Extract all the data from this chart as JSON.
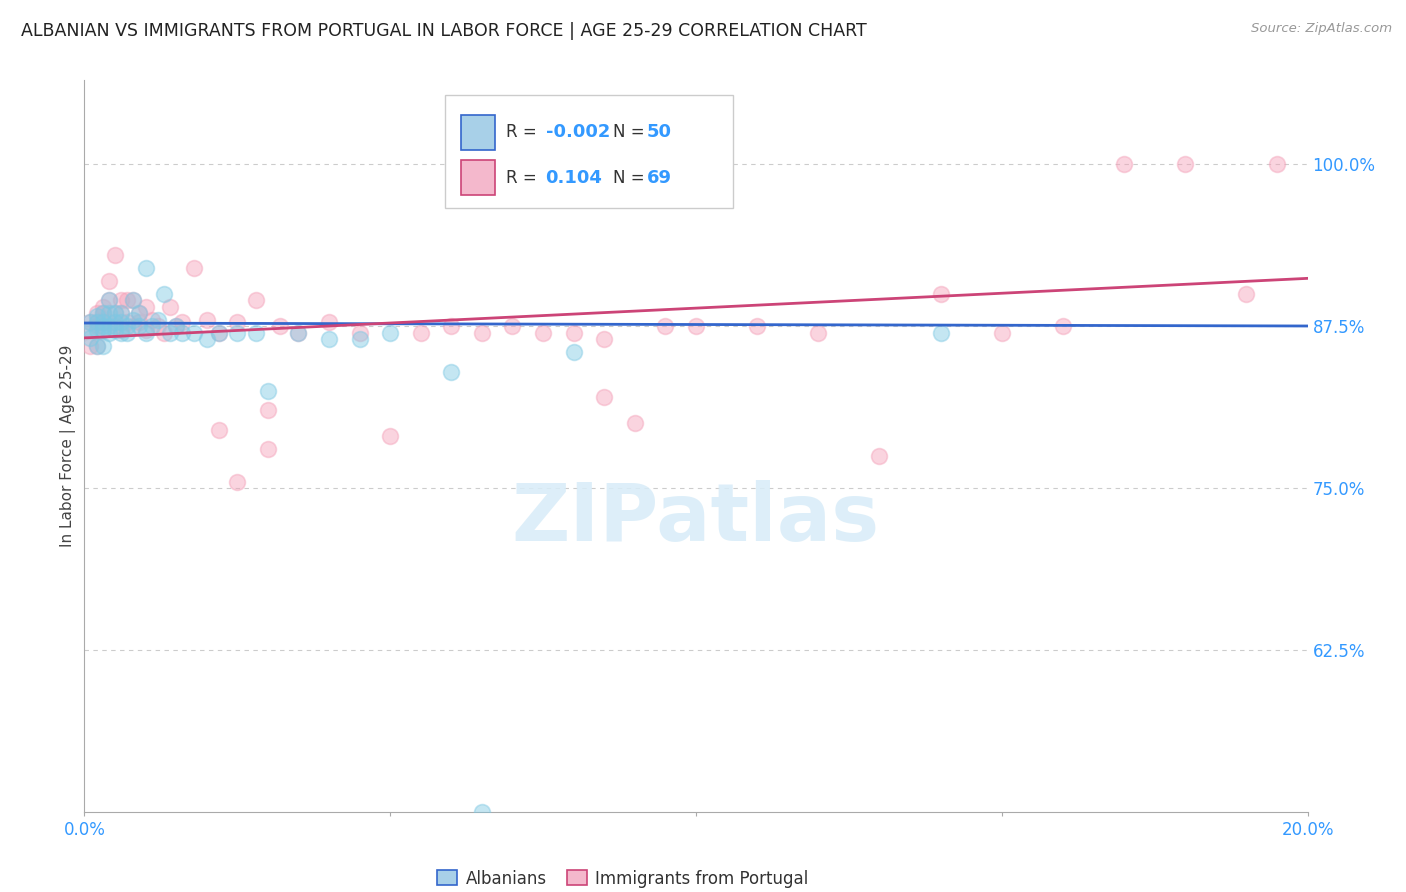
{
  "title": "ALBANIAN VS IMMIGRANTS FROM PORTUGAL IN LABOR FORCE | AGE 25-29 CORRELATION CHART",
  "source": "Source: ZipAtlas.com",
  "ylabel": "In Labor Force | Age 25-29",
  "yticks": [
    0.625,
    0.75,
    0.875,
    1.0
  ],
  "ytick_labels": [
    "62.5%",
    "75.0%",
    "87.5%",
    "100.0%"
  ],
  "xlim": [
    0.0,
    0.2
  ],
  "ylim": [
    0.5,
    1.065
  ],
  "blue_scatter_x": [
    0.001,
    0.001,
    0.001,
    0.002,
    0.002,
    0.002,
    0.002,
    0.003,
    0.003,
    0.003,
    0.003,
    0.003,
    0.004,
    0.004,
    0.004,
    0.004,
    0.005,
    0.005,
    0.005,
    0.006,
    0.006,
    0.006,
    0.007,
    0.007,
    0.008,
    0.008,
    0.009,
    0.009,
    0.01,
    0.01,
    0.011,
    0.012,
    0.013,
    0.014,
    0.015,
    0.016,
    0.018,
    0.02,
    0.022,
    0.025,
    0.028,
    0.03,
    0.035,
    0.04,
    0.045,
    0.05,
    0.06,
    0.08,
    0.14,
    0.065
  ],
  "blue_scatter_y": [
    0.878,
    0.872,
    0.866,
    0.878,
    0.872,
    0.883,
    0.86,
    0.875,
    0.878,
    0.885,
    0.872,
    0.86,
    0.875,
    0.885,
    0.87,
    0.895,
    0.872,
    0.878,
    0.885,
    0.87,
    0.885,
    0.878,
    0.87,
    0.875,
    0.88,
    0.895,
    0.875,
    0.885,
    0.92,
    0.87,
    0.875,
    0.88,
    0.9,
    0.87,
    0.875,
    0.87,
    0.87,
    0.865,
    0.87,
    0.87,
    0.87,
    0.825,
    0.87,
    0.865,
    0.865,
    0.87,
    0.84,
    0.855,
    0.87,
    0.5
  ],
  "pink_scatter_x": [
    0.001,
    0.001,
    0.001,
    0.002,
    0.002,
    0.002,
    0.002,
    0.003,
    0.003,
    0.003,
    0.003,
    0.004,
    0.004,
    0.004,
    0.005,
    0.005,
    0.005,
    0.006,
    0.006,
    0.006,
    0.007,
    0.007,
    0.008,
    0.008,
    0.009,
    0.009,
    0.01,
    0.01,
    0.011,
    0.012,
    0.013,
    0.014,
    0.015,
    0.016,
    0.018,
    0.02,
    0.022,
    0.025,
    0.028,
    0.03,
    0.032,
    0.035,
    0.04,
    0.045,
    0.05,
    0.055,
    0.06,
    0.065,
    0.07,
    0.075,
    0.08,
    0.085,
    0.09,
    0.095,
    0.1,
    0.11,
    0.12,
    0.13,
    0.14,
    0.15,
    0.16,
    0.17,
    0.18,
    0.19,
    0.195,
    0.022,
    0.025,
    0.03,
    0.085
  ],
  "pink_scatter_y": [
    0.878,
    0.872,
    0.86,
    0.875,
    0.878,
    0.885,
    0.86,
    0.878,
    0.885,
    0.89,
    0.872,
    0.878,
    0.895,
    0.91,
    0.875,
    0.885,
    0.93,
    0.872,
    0.885,
    0.895,
    0.878,
    0.895,
    0.875,
    0.895,
    0.878,
    0.885,
    0.872,
    0.89,
    0.88,
    0.875,
    0.87,
    0.89,
    0.875,
    0.878,
    0.92,
    0.88,
    0.87,
    0.878,
    0.895,
    0.81,
    0.875,
    0.87,
    0.878,
    0.87,
    0.79,
    0.87,
    0.875,
    0.87,
    0.875,
    0.87,
    0.87,
    0.865,
    0.8,
    0.875,
    0.875,
    0.875,
    0.87,
    0.775,
    0.9,
    0.87,
    0.875,
    1.0,
    1.0,
    0.9,
    1.0,
    0.795,
    0.755,
    0.78,
    0.82
  ],
  "blue_line_x": [
    0.0,
    0.2
  ],
  "blue_line_y": [
    0.8775,
    0.8752
  ],
  "pink_line_x": [
    0.0,
    0.2
  ],
  "pink_line_y": [
    0.866,
    0.912
  ],
  "scatter_size": 130,
  "scatter_alpha": 0.45,
  "blue_color": "#7ec8e3",
  "pink_color": "#f4a0b8",
  "blue_line_color": "#3366cc",
  "pink_line_color": "#cc4477",
  "title_color": "#222222",
  "axis_label_color": "#444444",
  "tick_color": "#3399ff",
  "grid_color": "#cccccc",
  "watermark_text": "ZIPatlas",
  "watermark_color": "#d8ecf8",
  "background_color": "#ffffff",
  "legend_R_blue": "-0.002",
  "legend_N_blue": "50",
  "legend_R_pink": "0.104",
  "legend_N_pink": "69",
  "legend_blue_color": "#a8d0e8",
  "legend_pink_color": "#f4b8cc",
  "legend_blue_border": "#3366cc",
  "legend_pink_border": "#cc4477"
}
